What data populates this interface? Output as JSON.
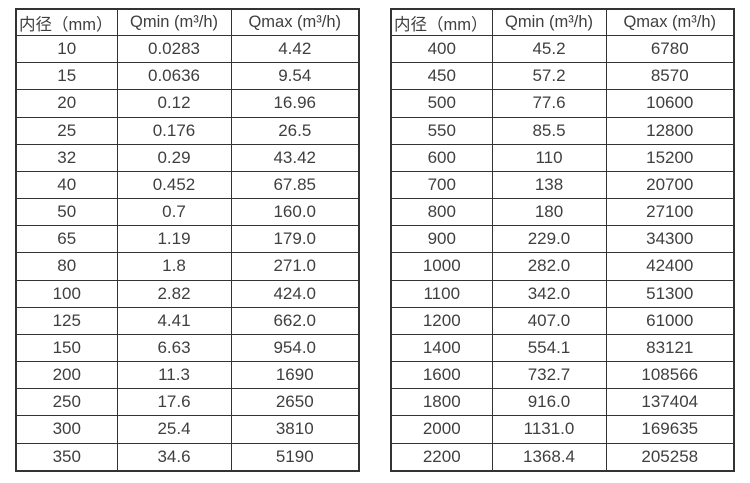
{
  "page": {
    "background": "#ffffff"
  },
  "colors": {
    "border": "#333333",
    "text": "#3f3f3f"
  },
  "tables": [
    {
      "name": "flow-spec-table-dn10-350",
      "headers": [
        "内径（mm）",
        "Qmin (m³/h)",
        "Qmax (m³/h)"
      ],
      "rows": [
        [
          "10",
          "0.0283",
          "4.42"
        ],
        [
          "15",
          "0.0636",
          "9.54"
        ],
        [
          "20",
          "0.12",
          "16.96"
        ],
        [
          "25",
          "0.176",
          "26.5"
        ],
        [
          "32",
          "0.29",
          "43.42"
        ],
        [
          "40",
          "0.452",
          "67.85"
        ],
        [
          "50",
          "0.7",
          "160.0"
        ],
        [
          "65",
          "1.19",
          "179.0"
        ],
        [
          "80",
          "1.8",
          "271.0"
        ],
        [
          "100",
          "2.82",
          "424.0"
        ],
        [
          "125",
          "4.41",
          "662.0"
        ],
        [
          "150",
          "6.63",
          "954.0"
        ],
        [
          "200",
          "11.3",
          "1690"
        ],
        [
          "250",
          "17.6",
          "2650"
        ],
        [
          "300",
          "25.4",
          "3810"
        ],
        [
          "350",
          "34.6",
          "5190"
        ]
      ]
    },
    {
      "name": "flow-spec-table-dn400-2200",
      "headers": [
        "内径（mm）",
        "Qmin (m³/h)",
        "Qmax (m³/h)"
      ],
      "rows": [
        [
          "400",
          "45.2",
          "6780"
        ],
        [
          "450",
          "57.2",
          "8570"
        ],
        [
          "500",
          "77.6",
          "10600"
        ],
        [
          "550",
          "85.5",
          "12800"
        ],
        [
          "600",
          "110",
          "15200"
        ],
        [
          "700",
          "138",
          "20700"
        ],
        [
          "800",
          "180",
          "27100"
        ],
        [
          "900",
          "229.0",
          "34300"
        ],
        [
          "1000",
          "282.0",
          "42400"
        ],
        [
          "1100",
          "342.0",
          "51300"
        ],
        [
          "1200",
          "407.0",
          "61000"
        ],
        [
          "1400",
          "554.1",
          "83121"
        ],
        [
          "1600",
          "732.7",
          "108566"
        ],
        [
          "1800",
          "916.0",
          "137404"
        ],
        [
          "2000",
          "1131.0",
          "169635"
        ],
        [
          "2200",
          "1368.4",
          "205258"
        ]
      ]
    }
  ]
}
